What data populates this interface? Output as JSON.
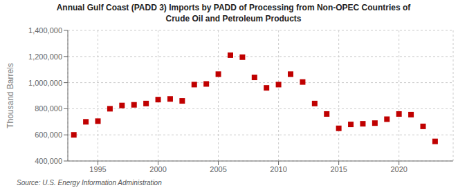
{
  "chart_data": {
    "type": "scatter",
    "title": "Annual Gulf Coast (PADD 3) Imports by PADD of Processing from Non-OPEC Countries of\nCrude Oil and Petroleum Products",
    "ylabel": "Thousand Barrels",
    "annotation": "Source: U.S. Energy Information Administration",
    "color": "#c00000",
    "marker": "square",
    "x": [
      1993,
      1994,
      1995,
      1996,
      1997,
      1998,
      1999,
      2000,
      2001,
      2002,
      2003,
      2004,
      2005,
      2006,
      2007,
      2008,
      2009,
      2010,
      2011,
      2012,
      2013,
      2014,
      2015,
      2016,
      2017,
      2018,
      2019,
      2020,
      2021,
      2022,
      2023
    ],
    "values": [
      600000,
      700000,
      705000,
      800000,
      825000,
      830000,
      840000,
      870000,
      875000,
      860000,
      985000,
      990000,
      1065000,
      1210000,
      1195000,
      1040000,
      960000,
      985000,
      1065000,
      1005000,
      840000,
      760000,
      650000,
      680000,
      685000,
      690000,
      720000,
      760000,
      755000,
      665000,
      550000
    ],
    "xlim": [
      1992.5,
      2024.5
    ],
    "xticks": [
      1995,
      2000,
      2005,
      2010,
      2015,
      2020
    ],
    "ylim": [
      400000,
      1400000
    ],
    "yticks": [
      {
        "value": 400000,
        "label": "400,000"
      },
      {
        "value": 600000,
        "label": "600,000"
      },
      {
        "value": 800000,
        "label": "800,000"
      },
      {
        "value": 1000000,
        "label": "1,000,000"
      },
      {
        "value": 1200000,
        "label": "1,200,000"
      },
      {
        "value": 1400000,
        "label": "1,400,000"
      }
    ],
    "grid": true
  }
}
